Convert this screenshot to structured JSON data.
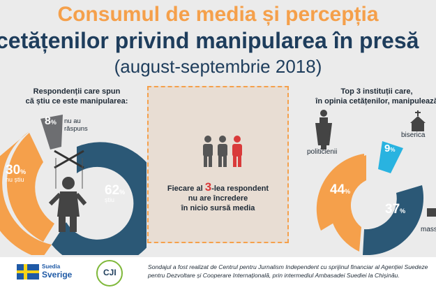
{
  "title": {
    "line1": "Consumul de media și percepția",
    "line2": "cetățenilor privind manipularea în presă",
    "line3": "(august-septembrie 2018)"
  },
  "left_panel": {
    "heading_line1": "Respondenții care spun",
    "heading_line2": "că știu ce este manipularea:",
    "slices": [
      {
        "value": "62",
        "unit": "%",
        "label": "știu"
      },
      {
        "value": "30",
        "unit": "%",
        "label": "nu știu"
      },
      {
        "value": "8",
        "unit": "%",
        "label_line1": "nu au",
        "label_line2": "răspuns"
      }
    ]
  },
  "middle_panel": {
    "text_before": "Fiecare al ",
    "number": "3",
    "text_after": "-lea respondent",
    "line2": "nu are încredere",
    "line3": "în nicio sursă media"
  },
  "right_panel": {
    "heading_line1": "Top 3 instituții care,",
    "heading_line2": "în opinia cetățenilor, manipulează",
    "slices": [
      {
        "value": "44",
        "unit": "%",
        "label": "politicienii"
      },
      {
        "value": "37",
        "unit": "%",
        "label": "massmedia"
      },
      {
        "value": "9",
        "unit": "%",
        "label": "biserica"
      }
    ]
  },
  "footer": {
    "logo_se_line1": "Suedia",
    "logo_se_line2": "Sverige",
    "logo_cji": "CJI",
    "text": "Sondajul a fost realizat de Centrul pentru Jurnalism Independent cu sprijinul financiar al Agenției Suedeze pentru Dezvoltare și Cooperare Internațională, prin intermediul Ambasadei Suediei la Chișinău."
  },
  "colors": {
    "orange": "#f5a04b",
    "navy": "#1e3d5c",
    "teal": "#2b5876",
    "cyan": "#29b3e0",
    "gray": "#6d6e71",
    "red": "#d93a3a"
  }
}
